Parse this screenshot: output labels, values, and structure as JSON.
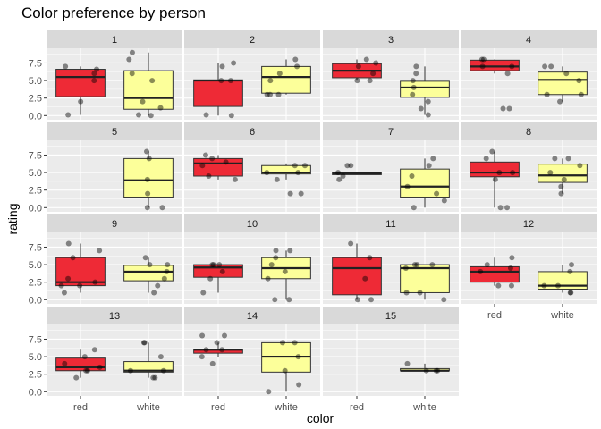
{
  "chart_data": {
    "type": "boxplot",
    "title": "Color preference by person",
    "xlabel": "color",
    "ylabel": "rating",
    "facet_layout": "wrap, 4 columns, 4 rows",
    "categories": [
      "red",
      "white"
    ],
    "ylim": [
      -0.6,
      9.6
    ],
    "yticks": [
      0.0,
      2.5,
      5.0,
      7.5
    ],
    "ytick_labels": [
      "0.0",
      "2.5",
      "5.0",
      "7.5"
    ],
    "colors": {
      "red": "#ee2a36",
      "white": "#fcff9a",
      "panel": "#ebebeb",
      "grid": "#ffffff",
      "strip": "#d9d9d9",
      "points": "#000000"
    },
    "grid": true,
    "points": "jittered, semi-transparent",
    "facets": [
      {
        "label": "1",
        "red": {
          "box": [
            0.1,
            2.7,
            5.5,
            6.6,
            7.0
          ],
          "points": [
            0.1,
            2.0,
            5.0,
            6.0,
            6.6,
            7.0
          ]
        },
        "white": {
          "box": [
            0.0,
            0.9,
            2.5,
            6.4,
            9.0
          ],
          "points": [
            0.0,
            0.1,
            1.1,
            2.0,
            5.0,
            6.0,
            8.0,
            9.0
          ]
        }
      },
      {
        "label": "2",
        "red": {
          "box": [
            0.0,
            1.3,
            5.0,
            5.1,
            7.5
          ],
          "points": [
            0.0,
            0.1,
            5.0,
            5.0,
            7.0,
            7.5
          ]
        },
        "white": {
          "box": [
            3.0,
            3.2,
            5.5,
            7.0,
            8.0
          ],
          "points": [
            3.0,
            3.0,
            3.0,
            5.0,
            6.0,
            7.0,
            8.0
          ]
        }
      },
      {
        "label": "3",
        "red": {
          "box": [
            5.0,
            5.4,
            6.4,
            7.4,
            8.0
          ],
          "points": [
            5.0,
            5.0,
            6.0,
            7.0,
            7.5,
            8.0
          ]
        },
        "white": {
          "box": [
            0.1,
            2.6,
            4.0,
            4.9,
            7.0
          ],
          "points": [
            0.1,
            1.0,
            2.0,
            3.0,
            4.0,
            5.0,
            6.0,
            7.0
          ]
        }
      },
      {
        "label": "4",
        "red": {
          "box": [
            6.0,
            6.4,
            7.0,
            7.9,
            8.0
          ],
          "points": [
            1.0,
            1.0,
            6.0,
            7.0,
            7.0,
            8.0,
            8.0
          ]
        },
        "white": {
          "box": [
            2.0,
            3.0,
            5.1,
            6.2,
            7.0
          ],
          "points": [
            2.0,
            3.0,
            3.0,
            5.0,
            6.0,
            7.0,
            7.0
          ]
        }
      },
      {
        "label": "5",
        "red": null,
        "white": {
          "box": [
            0.0,
            1.5,
            3.9,
            7.0,
            8.0
          ],
          "points": [
            0.0,
            0.0,
            2.0,
            4.0,
            7.0,
            8.0
          ]
        }
      },
      {
        "label": "6",
        "red": {
          "box": [
            4.0,
            4.5,
            6.3,
            7.0,
            7.5
          ],
          "points": [
            4.0,
            4.5,
            6.0,
            6.5,
            7.0,
            7.5
          ]
        },
        "white": {
          "box": [
            4.0,
            4.8,
            5.0,
            6.0,
            6.3
          ],
          "points": [
            2.0,
            2.0,
            4.0,
            5.0,
            5.0,
            6.0,
            6.0
          ]
        }
      },
      {
        "label": "7",
        "red": {
          "box": [
            4.7,
            4.7,
            4.9,
            5.0,
            5.0
          ],
          "points": [
            4.0,
            4.5,
            5.0,
            6.0,
            6.0
          ]
        },
        "white": {
          "box": [
            0.0,
            1.5,
            3.0,
            5.5,
            7.0
          ],
          "points": [
            0.0,
            1.0,
            2.0,
            3.0,
            4.5,
            6.0,
            7.0
          ]
        }
      },
      {
        "label": "8",
        "red": {
          "box": [
            0.0,
            4.4,
            5.0,
            6.5,
            8.0
          ],
          "points": [
            0.0,
            0.0,
            4.0,
            5.0,
            5.0,
            7.0,
            8.0
          ]
        },
        "white": {
          "box": [
            2.0,
            3.6,
            4.6,
            6.2,
            7.0
          ],
          "points": [
            2.0,
            3.0,
            4.0,
            5.0,
            6.0,
            7.0,
            7.0
          ]
        }
      },
      {
        "label": "9",
        "red": {
          "box": [
            1.0,
            2.0,
            2.5,
            6.0,
            8.0
          ],
          "points": [
            1.0,
            2.0,
            2.0,
            2.5,
            3.0,
            6.0,
            7.0,
            8.0
          ]
        },
        "white": {
          "box": [
            1.0,
            2.7,
            4.0,
            4.9,
            6.0
          ],
          "points": [
            1.0,
            2.0,
            3.0,
            4.0,
            5.0,
            5.0,
            6.0
          ]
        }
      },
      {
        "label": "10",
        "red": {
          "box": [
            1.0,
            3.2,
            4.6,
            5.0,
            5.0
          ],
          "points": [
            1.0,
            3.0,
            4.0,
            5.0,
            5.0,
            5.0
          ]
        },
        "white": {
          "box": [
            0.0,
            3.0,
            4.5,
            6.0,
            7.0
          ],
          "points": [
            0.0,
            0.0,
            3.0,
            4.0,
            5.0,
            6.0,
            7.0,
            7.0
          ]
        }
      },
      {
        "label": "11",
        "red": {
          "box": [
            0.0,
            0.7,
            4.5,
            6.0,
            8.0
          ],
          "points": [
            0.0,
            0.0,
            3.0,
            6.0,
            8.0
          ]
        },
        "white": {
          "box": [
            0.0,
            1.0,
            4.5,
            5.0,
            5.0
          ],
          "points": [
            0.0,
            1.0,
            1.0,
            4.5,
            5.0,
            5.0,
            5.0
          ]
        }
      },
      {
        "label": "12",
        "red": {
          "box": [
            2.0,
            2.5,
            4.0,
            4.7,
            6.0
          ],
          "points": [
            2.0,
            2.0,
            4.0,
            4.5,
            5.0,
            6.0
          ]
        },
        "white": {
          "box": [
            1.0,
            1.5,
            2.0,
            4.0,
            5.0
          ],
          "points": [
            1.0,
            1.0,
            2.0,
            2.0,
            4.0,
            5.0
          ]
        }
      },
      {
        "label": "13",
        "red": {
          "box": [
            2.0,
            3.0,
            3.5,
            4.8,
            6.0
          ],
          "points": [
            2.0,
            3.0,
            3.0,
            3.5,
            4.0,
            5.0,
            6.0
          ]
        },
        "white": {
          "box": [
            2.0,
            2.8,
            3.0,
            4.3,
            7.0
          ],
          "points": [
            2.0,
            2.0,
            3.0,
            3.0,
            5.0,
            7.0,
            7.0
          ]
        }
      },
      {
        "label": "14",
        "red": {
          "box": [
            5.0,
            5.5,
            6.0,
            6.0,
            7.0
          ],
          "points": [
            4.0,
            5.0,
            6.0,
            6.0,
            7.0,
            8.0,
            8.0
          ]
        },
        "white": {
          "box": [
            0.0,
            2.8,
            5.0,
            7.0,
            7.0
          ],
          "points": [
            0.0,
            1.0,
            3.0,
            5.0,
            7.0,
            7.0
          ]
        }
      },
      {
        "label": "15",
        "red": null,
        "white": {
          "box": [
            3.0,
            3.0,
            3.0,
            3.3,
            4.0
          ],
          "points": [
            3.0,
            3.0,
            3.0,
            4.0
          ]
        }
      }
    ]
  }
}
